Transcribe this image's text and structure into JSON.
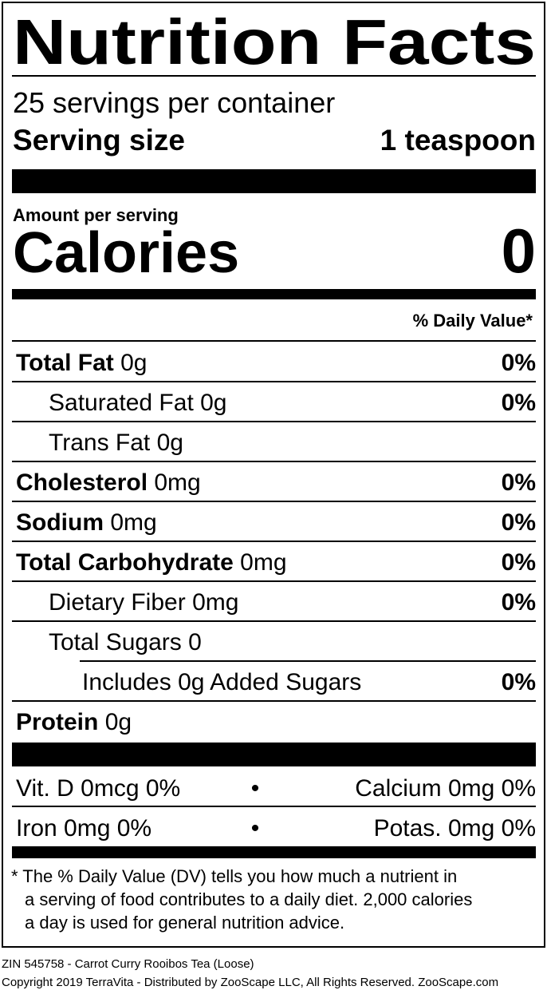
{
  "title": "Nutrition Facts",
  "servings": "25 servings per container",
  "serving_size": {
    "label": "Serving size",
    "value": "1 teaspoon"
  },
  "amount_per_serving": "Amount per serving",
  "calories": {
    "label": "Calories",
    "value": "0"
  },
  "daily_value_header": "% Daily Value*",
  "nutrients": [
    {
      "name": "Total Fat",
      "amount": "0g",
      "dv": "0%"
    },
    {
      "name": "Saturated Fat",
      "amount": "0g",
      "dv": "0%"
    },
    {
      "name": "Trans Fat",
      "amount": "0g"
    },
    {
      "name": "Cholesterol",
      "amount": "0mg",
      "dv": "0%"
    },
    {
      "name": "Sodium",
      "amount": "0mg",
      "dv": "0%"
    },
    {
      "name": "Total Carbohydrate",
      "amount": "0mg",
      "dv": "0%"
    },
    {
      "name": "Dietary Fiber",
      "amount": "0mg",
      "dv": "0%"
    },
    {
      "name": "Total Sugars",
      "amount": "0"
    },
    {
      "name": "Includes 0g Added Sugars",
      "dv": "0%"
    },
    {
      "name": "Protein",
      "amount": "0g"
    }
  ],
  "vitamins": [
    {
      "left": "Vit. D 0mcg 0%",
      "separator": "•",
      "right": "Calcium 0mg 0%"
    },
    {
      "left": "Iron 0mg 0%",
      "separator": "•",
      "right": "Potas. 0mg 0%"
    }
  ],
  "footnote": [
    "* The % Daily Value (DV) tells you how much a nutrient in",
    "a serving of food contributes to a daily diet. 2,000 calories",
    "a day is used for general nutrition advice."
  ],
  "footer": [
    "ZIN 545758 - Carrot Curry Rooibos Tea (Loose)",
    "Copyright 2019 TerraVita - Distributed by ZooScape LLC, All Rights Reserved. ZooScape.com"
  ]
}
